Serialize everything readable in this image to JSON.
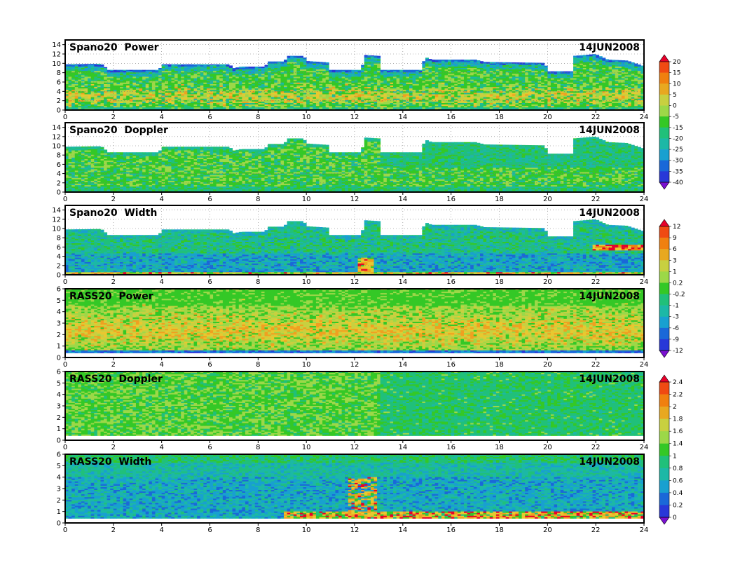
{
  "chart_data": [
    {
      "type": "heatmap",
      "title": "Spano20  Power",
      "date_label": "14JUN2008",
      "x_range": [
        0,
        24
      ],
      "x_ticks": [
        "0",
        "2",
        "4",
        "6",
        "8",
        "10",
        "12",
        "14",
        "16",
        "18",
        "20",
        "22",
        "24"
      ],
      "y_range": [
        0,
        15
      ],
      "y_ticks": [
        "0",
        "2",
        "4",
        "6",
        "8",
        "10",
        "12",
        "14"
      ],
      "grid": true,
      "top_profile": [
        [
          0,
          9.8
        ],
        [
          1.5,
          9.9
        ],
        [
          1.8,
          8.6
        ],
        [
          3.9,
          8.6
        ],
        [
          4.0,
          9.8
        ],
        [
          6.8,
          9.8
        ],
        [
          7.0,
          9.0
        ],
        [
          7.3,
          9.3
        ],
        [
          8.3,
          9.3
        ],
        [
          8.4,
          10.4
        ],
        [
          9.1,
          10.4
        ],
        [
          9.2,
          11.6
        ],
        [
          9.9,
          11.6
        ],
        [
          10.0,
          10.5
        ],
        [
          10.9,
          10.2
        ],
        [
          11.0,
          8.6
        ],
        [
          12.3,
          8.6
        ],
        [
          12.4,
          11.8
        ],
        [
          13.0,
          11.6
        ],
        [
          13.1,
          8.6
        ],
        [
          14.8,
          8.6
        ],
        [
          14.9,
          11.4
        ],
        [
          15.2,
          10.8
        ],
        [
          17.0,
          10.8
        ],
        [
          17.4,
          10.3
        ],
        [
          19.9,
          10.1
        ],
        [
          20.0,
          8.3
        ],
        [
          21.0,
          8.3
        ],
        [
          21.1,
          11.6
        ],
        [
          22.0,
          12.0
        ],
        [
          22.5,
          10.8
        ],
        [
          23.3,
          10.6
        ],
        [
          24.0,
          9.4
        ]
      ]
    },
    {
      "type": "heatmap",
      "title": "Spano20  Doppler",
      "date_label": "14JUN2008",
      "x_range": [
        0,
        24
      ],
      "x_ticks": [
        "0",
        "2",
        "4",
        "6",
        "8",
        "10",
        "12",
        "14",
        "16",
        "18",
        "20",
        "22",
        "24"
      ],
      "y_range": [
        0,
        15
      ],
      "y_ticks": [
        "0",
        "2",
        "4",
        "6",
        "8",
        "10",
        "12",
        "14"
      ],
      "grid": true,
      "top_profile": [
        [
          0,
          9.8
        ],
        [
          1.5,
          9.9
        ],
        [
          1.8,
          8.6
        ],
        [
          3.9,
          8.6
        ],
        [
          4.0,
          9.8
        ],
        [
          6.8,
          9.8
        ],
        [
          7.0,
          9.0
        ],
        [
          7.3,
          9.3
        ],
        [
          8.3,
          9.3
        ],
        [
          8.4,
          10.4
        ],
        [
          9.1,
          10.4
        ],
        [
          9.2,
          11.6
        ],
        [
          9.9,
          11.6
        ],
        [
          10.0,
          10.5
        ],
        [
          10.9,
          10.2
        ],
        [
          11.0,
          8.6
        ],
        [
          12.3,
          8.6
        ],
        [
          12.4,
          11.8
        ],
        [
          13.0,
          11.6
        ],
        [
          13.1,
          8.6
        ],
        [
          14.8,
          8.6
        ],
        [
          14.9,
          11.4
        ],
        [
          15.2,
          10.8
        ],
        [
          17.0,
          10.8
        ],
        [
          17.4,
          10.3
        ],
        [
          19.9,
          10.1
        ],
        [
          20.0,
          8.3
        ],
        [
          21.0,
          8.3
        ],
        [
          21.1,
          11.6
        ],
        [
          22.0,
          12.0
        ],
        [
          22.5,
          10.8
        ],
        [
          23.3,
          10.6
        ],
        [
          24.0,
          9.4
        ]
      ]
    },
    {
      "type": "heatmap",
      "title": "Spano20  Width",
      "date_label": "14JUN2008",
      "x_range": [
        0,
        24
      ],
      "x_ticks": [
        "0",
        "2",
        "4",
        "6",
        "8",
        "10",
        "12",
        "14",
        "16",
        "18",
        "20",
        "22",
        "24"
      ],
      "y_range": [
        0,
        15
      ],
      "y_ticks": [
        "0",
        "2",
        "4",
        "6",
        "8",
        "10",
        "12",
        "14"
      ],
      "grid": true,
      "top_profile": [
        [
          0,
          9.8
        ],
        [
          1.5,
          9.9
        ],
        [
          1.8,
          8.6
        ],
        [
          3.9,
          8.6
        ],
        [
          4.0,
          9.8
        ],
        [
          6.8,
          9.8
        ],
        [
          7.0,
          9.0
        ],
        [
          7.3,
          9.3
        ],
        [
          8.3,
          9.3
        ],
        [
          8.4,
          10.4
        ],
        [
          9.1,
          10.4
        ],
        [
          9.2,
          11.6
        ],
        [
          9.9,
          11.6
        ],
        [
          10.0,
          10.5
        ],
        [
          10.9,
          10.2
        ],
        [
          11.0,
          8.6
        ],
        [
          12.3,
          8.6
        ],
        [
          12.4,
          11.8
        ],
        [
          13.0,
          11.6
        ],
        [
          13.1,
          8.6
        ],
        [
          14.8,
          8.6
        ],
        [
          14.9,
          11.4
        ],
        [
          15.2,
          10.8
        ],
        [
          17.0,
          10.8
        ],
        [
          17.4,
          10.3
        ],
        [
          19.9,
          10.1
        ],
        [
          20.0,
          8.3
        ],
        [
          21.0,
          8.3
        ],
        [
          21.1,
          11.6
        ],
        [
          22.0,
          12.0
        ],
        [
          22.5,
          10.8
        ],
        [
          23.3,
          10.6
        ],
        [
          24.0,
          9.4
        ]
      ]
    },
    {
      "type": "heatmap",
      "title": "RASS20  Power",
      "date_label": "14JUN2008",
      "x_range": [
        0,
        24
      ],
      "x_ticks": [
        "0",
        "2",
        "4",
        "6",
        "8",
        "10",
        "12",
        "14",
        "16",
        "18",
        "20",
        "22",
        "24"
      ],
      "y_range": [
        0,
        6
      ],
      "y_ticks": [
        "0",
        "1",
        "2",
        "3",
        "4",
        "5",
        "6"
      ],
      "grid": false,
      "data_bottom": 0.4
    },
    {
      "type": "heatmap",
      "title": "RASS20  Doppler",
      "date_label": "14JUN2008",
      "x_range": [
        0,
        24
      ],
      "x_ticks": [
        "0",
        "2",
        "4",
        "6",
        "8",
        "10",
        "12",
        "14",
        "16",
        "18",
        "20",
        "22",
        "24"
      ],
      "y_range": [
        0,
        6
      ],
      "y_ticks": [
        "0",
        "1",
        "2",
        "3",
        "4",
        "5",
        "6"
      ],
      "grid": false,
      "data_bottom": 0.4
    },
    {
      "type": "heatmap",
      "title": "RASS20  Width",
      "date_label": "14JUN2008",
      "x_range": [
        0,
        24
      ],
      "x_ticks": [
        "0",
        "2",
        "4",
        "6",
        "8",
        "10",
        "12",
        "14",
        "16",
        "18",
        "20",
        "22",
        "24"
      ],
      "y_range": [
        0,
        6
      ],
      "y_ticks": [
        "0",
        "1",
        "2",
        "3",
        "4",
        "5",
        "6"
      ],
      "grid": false,
      "data_bottom": 0.4
    }
  ],
  "colorbars": [
    {
      "name": "power-colorbar",
      "labels": [
        "20",
        "15",
        "10",
        "5",
        "0",
        "-5",
        "-15",
        "-20",
        "-25",
        "-30",
        "-35",
        "-40"
      ],
      "colors": [
        "#e8002a",
        "#f04a12",
        "#f0800f",
        "#e8a820",
        "#c8d040",
        "#9cd848",
        "#34c826",
        "#20c07a",
        "#1cb8a6",
        "#18a0d0",
        "#1a68d8",
        "#2838d8",
        "#7a10d0"
      ]
    },
    {
      "name": "width-colorbar",
      "labels": [
        "12",
        "9",
        "6",
        "3",
        "1",
        "0.2",
        "-0.2",
        "-1",
        "-3",
        "-6",
        "-9",
        "-12"
      ],
      "colors": [
        "#e8002a",
        "#f04a12",
        "#f0800f",
        "#e8a820",
        "#c8d040",
        "#9cd848",
        "#34c826",
        "#20c07a",
        "#1cb8a6",
        "#18a0d0",
        "#1a68d8",
        "#2838d8",
        "#7a10d0"
      ]
    },
    {
      "name": "rass-width-colorbar",
      "labels": [
        "2.4",
        "2.2",
        "2",
        "1.8",
        "1.6",
        "1.4",
        "1",
        "0.8",
        "0.6",
        "0.4",
        "0.2",
        "0"
      ],
      "colors": [
        "#e8002a",
        "#f04a12",
        "#f0800f",
        "#e8a820",
        "#c8d040",
        "#9cd848",
        "#34c826",
        "#20c07a",
        "#1cb8a6",
        "#18a0d0",
        "#1a68d8",
        "#2838d8",
        "#7a10d0"
      ]
    }
  ]
}
